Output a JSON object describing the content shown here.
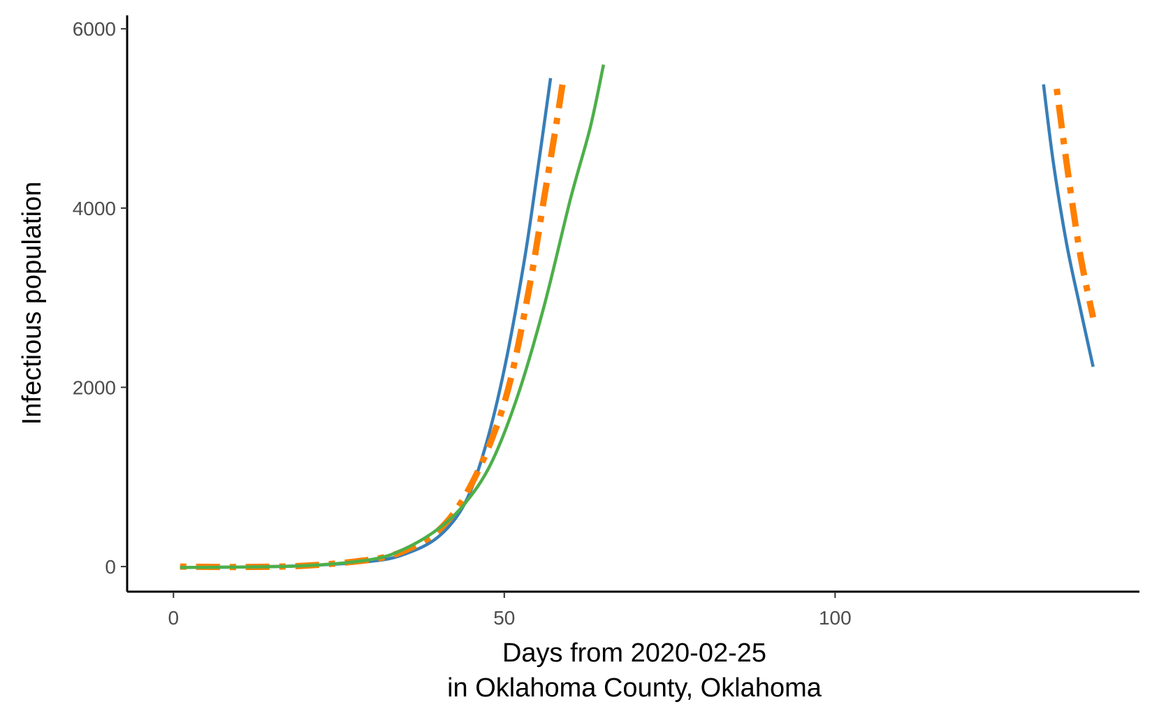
{
  "chart_data": {
    "type": "line",
    "title": "",
    "xlabel": [
      "Days from 2020-02-25",
      "in Oklahoma County, Oklahoma"
    ],
    "ylabel": "Infectious population",
    "xlim": [
      -7,
      146
    ],
    "ylim": [
      -280,
      6150
    ],
    "x_ticks": [
      0,
      50,
      100
    ],
    "x_tick_labels": [
      "0",
      "50",
      "100"
    ],
    "y_ticks": [
      0,
      2000,
      4000,
      6000
    ],
    "y_tick_labels": [
      "0",
      "2000",
      "4000",
      "6000"
    ],
    "grid": false,
    "legend": "none",
    "series": [
      {
        "color": "#377eb8",
        "style": "solid",
        "segments": [
          [
            [
              1,
              -10
            ],
            [
              10,
              -5
            ],
            [
              20,
              10
            ],
            [
              30,
              60
            ],
            [
              35,
              140
            ],
            [
              40,
              330
            ],
            [
              44,
              700
            ],
            [
              47,
              1300
            ],
            [
              50,
              2200
            ],
            [
              53,
              3400
            ],
            [
              55,
              4400
            ],
            [
              57,
              5450
            ]
          ],
          [
            [
              131.5,
              5380
            ],
            [
              133,
              4500
            ],
            [
              135,
              3600
            ],
            [
              137,
              2900
            ],
            [
              139,
              2230
            ]
          ]
        ]
      },
      {
        "color": "#e41a1c",
        "style": "longdash",
        "segments": [
          [
            [
              1,
              -10
            ],
            [
              10,
              -5
            ],
            [
              20,
              10
            ],
            [
              30,
              80
            ],
            [
              35,
              200
            ],
            [
              40,
              420
            ],
            [
              44,
              700
            ],
            [
              48,
              1150
            ],
            [
              52,
              1900
            ],
            [
              56,
              2900
            ],
            [
              60,
              4100
            ],
            [
              63,
              4900
            ],
            [
              65,
              5600
            ]
          ]
        ]
      },
      {
        "color": "#ff7f00",
        "style": "dotdash",
        "segments": [
          [
            [
              1,
              0
            ],
            [
              10,
              -5
            ],
            [
              20,
              10
            ],
            [
              30,
              80
            ],
            [
              35,
              180
            ],
            [
              40,
              400
            ],
            [
              44,
              780
            ],
            [
              48,
              1400
            ],
            [
              51,
              2100
            ],
            [
              54,
              3200
            ],
            [
              56,
              4100
            ],
            [
              58,
              5000
            ],
            [
              59,
              5480
            ]
          ],
          [
            [
              133.5,
              5330
            ],
            [
              135,
              4500
            ],
            [
              137,
              3500
            ],
            [
              139,
              2780
            ]
          ]
        ]
      },
      {
        "color": "#4daf4a",
        "style": "solid",
        "segments": [
          [
            [
              1,
              -10
            ],
            [
              10,
              -5
            ],
            [
              20,
              10
            ],
            [
              30,
              80
            ],
            [
              35,
              200
            ],
            [
              40,
              420
            ],
            [
              44,
              700
            ],
            [
              48,
              1150
            ],
            [
              52,
              1900
            ],
            [
              56,
              2900
            ],
            [
              60,
              4100
            ],
            [
              63,
              4900
            ],
            [
              65,
              5600
            ]
          ]
        ]
      }
    ]
  }
}
